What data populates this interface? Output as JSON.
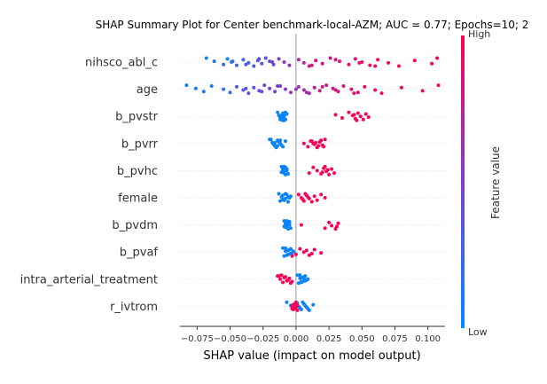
{
  "chart_data": {
    "type": "scatter",
    "title": "SHAP Summary Plot for Center benchmark-local-AZM; AUC = 0.77; Epochs=10; 2",
    "xlabel": "SHAP value (impact on model output)",
    "colorbar_label": "Feature value",
    "colorbar_high": "High",
    "colorbar_low": "Low",
    "xlim": [
      -0.088,
      0.113
    ],
    "xticks": [
      -0.075,
      -0.05,
      -0.025,
      0.0,
      0.025,
      0.05,
      0.075,
      0.1
    ],
    "xtick_labels": [
      "−0.075",
      "−0.050",
      "−0.025",
      "0.000",
      "0.025",
      "0.050",
      "0.075",
      "0.100"
    ],
    "colors": {
      "low": "#008bfb",
      "high": "#ff0052",
      "zero_line": "#999999",
      "grid": "#cccccc"
    },
    "features": [
      {
        "name": "nihsco_abl_c",
        "points": [
          [
            -0.068,
            0.05
          ],
          [
            -0.062,
            0.1
          ],
          [
            -0.055,
            0.15
          ],
          [
            -0.052,
            0.1
          ],
          [
            -0.049,
            0.18
          ],
          [
            -0.045,
            0.2
          ],
          [
            -0.04,
            0.25
          ],
          [
            -0.036,
            0.28
          ],
          [
            -0.032,
            0.3
          ],
          [
            -0.029,
            0.33
          ],
          [
            -0.026,
            0.36
          ],
          [
            -0.023,
            0.4
          ],
          [
            -0.02,
            0.43
          ],
          [
            -0.017,
            0.46
          ],
          [
            -0.013,
            0.5
          ],
          [
            -0.009,
            0.55
          ],
          [
            -0.005,
            0.58
          ],
          [
            0.002,
            0.7
          ],
          [
            0.006,
            0.74
          ],
          [
            0.01,
            0.78
          ],
          [
            0.015,
            0.8
          ],
          [
            0.02,
            0.82
          ],
          [
            0.026,
            0.84
          ],
          [
            0.033,
            0.86
          ],
          [
            0.04,
            0.88
          ],
          [
            0.045,
            0.9
          ],
          [
            0.05,
            0.92
          ],
          [
            0.056,
            0.93
          ],
          [
            0.062,
            0.95
          ],
          [
            0.07,
            0.96
          ],
          [
            0.078,
            0.97
          ],
          [
            0.09,
            0.98
          ],
          [
            0.103,
            0.99
          ],
          [
            0.107,
            1.0
          ],
          [
            -0.048,
            0.22
          ],
          [
            -0.038,
            0.3
          ],
          [
            -0.028,
            0.38
          ],
          [
            -0.018,
            0.48
          ],
          [
            0.012,
            0.82
          ],
          [
            0.03,
            0.88
          ],
          [
            0.048,
            0.92
          ],
          [
            0.06,
            0.95
          ]
        ]
      },
      {
        "name": "age",
        "points": [
          [
            -0.083,
            0.05
          ],
          [
            -0.076,
            0.08
          ],
          [
            -0.07,
            0.12
          ],
          [
            -0.064,
            0.1
          ],
          [
            -0.055,
            0.18
          ],
          [
            -0.05,
            0.22
          ],
          [
            -0.045,
            0.3
          ],
          [
            -0.04,
            0.35
          ],
          [
            -0.036,
            0.38
          ],
          [
            -0.032,
            0.4
          ],
          [
            -0.028,
            0.44
          ],
          [
            -0.024,
            0.46
          ],
          [
            -0.02,
            0.48
          ],
          [
            -0.016,
            0.5
          ],
          [
            -0.012,
            0.52
          ],
          [
            -0.008,
            0.55
          ],
          [
            -0.004,
            0.58
          ],
          [
            0.002,
            0.62
          ],
          [
            0.006,
            0.65
          ],
          [
            0.01,
            0.68
          ],
          [
            0.014,
            0.72
          ],
          [
            0.018,
            0.75
          ],
          [
            0.023,
            0.78
          ],
          [
            0.028,
            0.8
          ],
          [
            0.032,
            0.82
          ],
          [
            0.036,
            0.84
          ],
          [
            0.042,
            0.86
          ],
          [
            0.047,
            0.88
          ],
          [
            0.052,
            0.9
          ],
          [
            0.06,
            0.92
          ],
          [
            0.065,
            0.94
          ],
          [
            0.08,
            0.96
          ],
          [
            0.096,
            0.98
          ],
          [
            0.108,
            1.0
          ],
          [
            -0.038,
            0.36
          ],
          [
            -0.026,
            0.45
          ],
          [
            -0.014,
            0.52
          ],
          [
            0.0,
            0.6
          ],
          [
            0.008,
            0.66
          ],
          [
            0.02,
            0.76
          ],
          [
            0.03,
            0.81
          ],
          [
            0.044,
            0.87
          ]
        ]
      },
      {
        "name": "b_pvstr",
        "points": [
          [
            -0.014,
            0.02
          ],
          [
            -0.012,
            0.04
          ],
          [
            -0.011,
            0.05
          ],
          [
            -0.01,
            0.03
          ],
          [
            -0.009,
            0.06
          ],
          [
            -0.008,
            0.04
          ],
          [
            -0.007,
            0.05
          ],
          [
            -0.012,
            0.03
          ],
          [
            -0.01,
            0.06
          ],
          [
            -0.009,
            0.02
          ],
          [
            -0.011,
            0.05
          ],
          [
            -0.008,
            0.04
          ],
          [
            -0.013,
            0.03
          ],
          [
            -0.01,
            0.04
          ],
          [
            -0.009,
            0.05
          ],
          [
            -0.011,
            0.02
          ],
          [
            -0.012,
            0.06
          ],
          [
            -0.008,
            0.03
          ],
          [
            -0.01,
            0.05
          ],
          [
            -0.009,
            0.04
          ],
          [
            0.03,
            0.96
          ],
          [
            0.035,
            0.98
          ],
          [
            0.04,
            0.97
          ],
          [
            0.043,
            0.99
          ],
          [
            0.045,
            1.0
          ],
          [
            0.047,
            0.98
          ],
          [
            0.049,
            0.97
          ],
          [
            0.051,
            0.99
          ],
          [
            0.053,
            0.96
          ],
          [
            0.055,
            0.98
          ],
          [
            0.046,
            0.97
          ],
          [
            0.044,
            0.99
          ]
        ]
      },
      {
        "name": "b_pvrr",
        "points": [
          [
            -0.02,
            0.04
          ],
          [
            -0.018,
            0.06
          ],
          [
            -0.016,
            0.03
          ],
          [
            -0.014,
            0.05
          ],
          [
            -0.012,
            0.04
          ],
          [
            -0.01,
            0.06
          ],
          [
            -0.008,
            0.03
          ],
          [
            -0.017,
            0.05
          ],
          [
            -0.015,
            0.04
          ],
          [
            -0.013,
            0.06
          ],
          [
            -0.011,
            0.03
          ],
          [
            -0.019,
            0.05
          ],
          [
            -0.016,
            0.04
          ],
          [
            -0.014,
            0.06
          ],
          [
            -0.012,
            0.05
          ],
          [
            0.006,
            0.96
          ],
          [
            0.009,
            0.98
          ],
          [
            0.012,
            0.97
          ],
          [
            0.014,
            0.99
          ],
          [
            0.016,
            1.0
          ],
          [
            0.018,
            0.98
          ],
          [
            0.02,
            0.97
          ],
          [
            0.022,
            0.99
          ],
          [
            0.015,
            0.96
          ],
          [
            0.017,
            0.98
          ],
          [
            0.019,
            0.97
          ],
          [
            0.013,
            0.99
          ],
          [
            0.021,
            0.96
          ],
          [
            0.011,
            0.98
          ]
        ]
      },
      {
        "name": "b_pvhc",
        "points": [
          [
            -0.011,
            0.04
          ],
          [
            -0.01,
            0.06
          ],
          [
            -0.009,
            0.03
          ],
          [
            -0.008,
            0.05
          ],
          [
            -0.007,
            0.04
          ],
          [
            -0.006,
            0.06
          ],
          [
            -0.01,
            0.05
          ],
          [
            -0.009,
            0.04
          ],
          [
            -0.008,
            0.03
          ],
          [
            -0.007,
            0.05
          ],
          [
            -0.011,
            0.06
          ],
          [
            -0.009,
            0.05
          ],
          [
            -0.008,
            0.04
          ],
          [
            0.01,
            0.96
          ],
          [
            0.013,
            0.98
          ],
          [
            0.016,
            0.97
          ],
          [
            0.019,
            0.99
          ],
          [
            0.021,
            1.0
          ],
          [
            0.023,
            0.98
          ],
          [
            0.025,
            0.97
          ],
          [
            0.027,
            0.99
          ],
          [
            0.02,
            0.96
          ],
          [
            0.022,
            0.98
          ],
          [
            0.024,
            0.97
          ],
          [
            0.029,
            0.99
          ]
        ]
      },
      {
        "name": "female",
        "points": [
          [
            -0.013,
            0.04
          ],
          [
            -0.011,
            0.06
          ],
          [
            -0.009,
            0.03
          ],
          [
            -0.007,
            0.05
          ],
          [
            -0.005,
            0.04
          ],
          [
            -0.012,
            0.05
          ],
          [
            -0.01,
            0.03
          ],
          [
            -0.008,
            0.06
          ],
          [
            -0.006,
            0.04
          ],
          [
            -0.004,
            0.05
          ],
          [
            -0.01,
            0.04
          ],
          [
            -0.008,
            0.05
          ],
          [
            -0.006,
            0.03
          ],
          [
            -0.009,
            0.06
          ],
          [
            0.002,
            0.96
          ],
          [
            0.004,
            0.98
          ],
          [
            0.006,
            0.97
          ],
          [
            0.008,
            0.99
          ],
          [
            0.01,
            1.0
          ],
          [
            0.012,
            0.98
          ],
          [
            0.014,
            0.97
          ],
          [
            0.005,
            0.99
          ],
          [
            0.007,
            0.96
          ],
          [
            0.009,
            0.98
          ],
          [
            0.016,
            0.97
          ],
          [
            0.019,
            0.99
          ],
          [
            0.022,
            0.96
          ]
        ]
      },
      {
        "name": "b_pvdm",
        "points": [
          [
            -0.009,
            0.04
          ],
          [
            -0.008,
            0.06
          ],
          [
            -0.007,
            0.03
          ],
          [
            -0.006,
            0.05
          ],
          [
            -0.005,
            0.04
          ],
          [
            -0.004,
            0.06
          ],
          [
            -0.008,
            0.05
          ],
          [
            -0.007,
            0.04
          ],
          [
            -0.006,
            0.03
          ],
          [
            -0.005,
            0.05
          ],
          [
            -0.009,
            0.06
          ],
          [
            -0.007,
            0.05
          ],
          [
            -0.006,
            0.04
          ],
          [
            -0.008,
            0.03
          ],
          [
            -0.005,
            0.06
          ],
          [
            0.004,
            0.96
          ],
          [
            0.022,
            0.97
          ],
          [
            0.025,
            0.99
          ],
          [
            0.027,
            0.98
          ],
          [
            0.03,
            0.97
          ],
          [
            0.032,
            0.99
          ],
          [
            0.031,
            1.0
          ]
        ]
      },
      {
        "name": "b_pvaf",
        "points": [
          [
            -0.01,
            0.04
          ],
          [
            -0.008,
            0.06
          ],
          [
            -0.006,
            0.03
          ],
          [
            -0.004,
            0.05
          ],
          [
            -0.002,
            0.04
          ],
          [
            -0.007,
            0.05
          ],
          [
            -0.005,
            0.06
          ],
          [
            -0.003,
            0.04
          ],
          [
            -0.009,
            0.03
          ],
          [
            -0.006,
            0.05
          ],
          [
            -0.004,
            0.04
          ],
          [
            -0.008,
            0.05
          ],
          [
            -0.002,
            0.06
          ],
          [
            0.0,
            0.96
          ],
          [
            0.003,
            0.97
          ],
          [
            0.006,
            0.98
          ],
          [
            0.01,
            0.99
          ],
          [
            0.014,
            0.97
          ],
          [
            0.019,
            1.0
          ],
          [
            -0.003,
            0.98
          ],
          [
            0.008,
            0.96
          ],
          [
            0.012,
            0.98
          ]
        ]
      },
      {
        "name": "intra_arterial_treatment",
        "points": [
          [
            0.001,
            0.04
          ],
          [
            0.003,
            0.06
          ],
          [
            0.005,
            0.03
          ],
          [
            0.007,
            0.05
          ],
          [
            0.009,
            0.04
          ],
          [
            0.004,
            0.05
          ],
          [
            0.006,
            0.06
          ],
          [
            0.008,
            0.04
          ],
          [
            0.002,
            0.03
          ],
          [
            0.005,
            0.05
          ],
          [
            0.007,
            0.04
          ],
          [
            0.003,
            0.05
          ],
          [
            0.006,
            0.03
          ],
          [
            0.004,
            0.06
          ],
          [
            -0.014,
            0.96
          ],
          [
            -0.012,
            0.98
          ],
          [
            -0.01,
            0.97
          ],
          [
            -0.008,
            0.99
          ],
          [
            -0.006,
            1.0
          ],
          [
            -0.004,
            0.98
          ],
          [
            -0.009,
            0.97
          ],
          [
            -0.007,
            0.99
          ],
          [
            -0.011,
            0.96
          ],
          [
            -0.005,
            0.98
          ],
          [
            -0.003,
            0.97
          ],
          [
            -0.013,
            0.99
          ]
        ]
      },
      {
        "name": "r_ivtrom",
        "points": [
          [
            -0.007,
            0.04
          ],
          [
            -0.004,
            0.06
          ],
          [
            -0.002,
            0.03
          ],
          [
            0.0,
            0.05
          ],
          [
            0.002,
            0.04
          ],
          [
            0.004,
            0.06
          ],
          [
            0.006,
            0.03
          ],
          [
            0.008,
            0.05
          ],
          [
            0.01,
            0.04
          ],
          [
            0.013,
            0.06
          ],
          [
            0.003,
            0.05
          ],
          [
            0.005,
            0.04
          ],
          [
            0.007,
            0.06
          ],
          [
            0.009,
            0.03
          ],
          [
            0.001,
            0.05
          ],
          [
            -0.003,
            0.96
          ],
          [
            -0.002,
            0.98
          ],
          [
            -0.001,
            0.97
          ],
          [
            0.0,
            0.99
          ],
          [
            0.001,
            1.0
          ],
          [
            -0.002,
            0.96
          ],
          [
            -0.001,
            0.98
          ],
          [
            0.0,
            0.97
          ],
          [
            0.001,
            0.99
          ],
          [
            -0.003,
            0.98
          ]
        ]
      }
    ]
  }
}
